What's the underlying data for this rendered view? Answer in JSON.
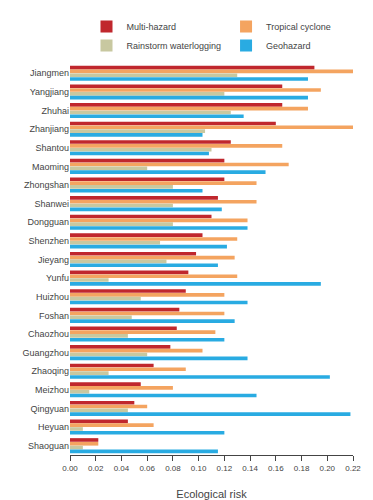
{
  "chart_data": {
    "type": "bar",
    "orientation": "horizontal",
    "categories": [
      "Jiangmen",
      "Yangjiang",
      "Zhuhai",
      "Zhanjiang",
      "Shantou",
      "Maoming",
      "Zhongshan",
      "Shanwei",
      "Dongguan",
      "Shenzhen",
      "Jieyang",
      "Yunfu",
      "Huizhou",
      "Foshan",
      "Chaozhou",
      "Guangzhou",
      "Zhaoqing",
      "Meizhou",
      "Qingyuan",
      "Heyuan",
      "Shaoguan"
    ],
    "series": [
      {
        "name": "Multi-hazard",
        "color": "#C0272D",
        "values": [
          0.19,
          0.165,
          0.165,
          0.16,
          0.125,
          0.12,
          0.12,
          0.115,
          0.11,
          0.103,
          0.098,
          0.092,
          0.09,
          0.085,
          0.083,
          0.078,
          0.065,
          0.055,
          0.05,
          0.045,
          0.022
        ]
      },
      {
        "name": "Tropical cyclone",
        "color": "#F4A460",
        "values": [
          0.22,
          0.195,
          0.185,
          0.22,
          0.165,
          0.17,
          0.145,
          0.145,
          0.138,
          0.13,
          0.128,
          0.13,
          0.12,
          0.12,
          0.113,
          0.103,
          0.09,
          0.08,
          0.06,
          0.065,
          0.022
        ]
      },
      {
        "name": "Rainstorm waterlogging",
        "color": "#C8C8A0",
        "values": [
          0.13,
          0.12,
          0.125,
          0.105,
          0.11,
          0.06,
          0.08,
          0.08,
          0.08,
          0.07,
          0.075,
          0.03,
          0.055,
          0.048,
          0.045,
          0.06,
          0.03,
          0.015,
          0.045,
          0.01,
          0.01
        ]
      },
      {
        "name": "Geohazard",
        "color": "#29ABE2",
        "values": [
          0.185,
          0.185,
          0.135,
          0.103,
          0.108,
          0.152,
          0.103,
          0.118,
          0.138,
          0.122,
          0.115,
          0.195,
          0.138,
          0.128,
          0.12,
          0.138,
          0.202,
          0.145,
          0.218,
          0.12,
          0.115
        ]
      }
    ],
    "xlabel": "Ecological risk",
    "xlim": [
      0,
      0.22
    ],
    "xticks": [
      {
        "value": 0,
        "label": "0.00"
      },
      0.02,
      0.04,
      0.06,
      0.08,
      {
        "value": 0.1,
        "label": "0.10"
      },
      0.12,
      0.14,
      0.16,
      0.18,
      {
        "value": 0.2,
        "label": "0.20"
      },
      0.22
    ],
    "grid": false,
    "legend": "top"
  }
}
